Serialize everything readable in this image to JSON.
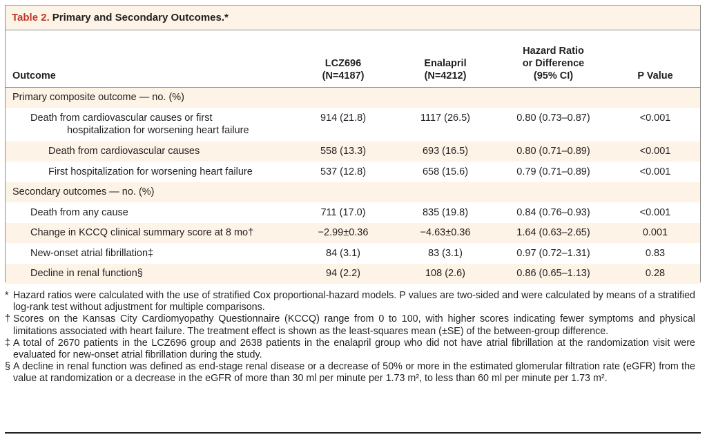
{
  "table": {
    "number": "Table 2.",
    "title": "Primary and Secondary Outcomes.*",
    "columns": {
      "outcome": "Outcome",
      "lcz": {
        "line1": "LCZ696",
        "line2": "(N=4187)"
      },
      "ena": {
        "line1": "Enalapril",
        "line2": "(N=4212)"
      },
      "hr": {
        "line1": "Hazard Ratio",
        "line2": "or Difference",
        "line3": "(95% CI)"
      },
      "p": "P Value"
    },
    "rows": [
      {
        "label": "Primary composite outcome — no. (%)",
        "lcz": "",
        "ena": "",
        "hr": "",
        "p": ""
      },
      {
        "label": "Death from cardiovascular causes or first",
        "label2": "hospitalization for worsening heart failure",
        "lcz": "914 (21.8)",
        "ena": "1117 (26.5)",
        "hr": "0.80 (0.73–0.87)",
        "p": "<0.001"
      },
      {
        "label": "Death from cardiovascular causes",
        "lcz": "558 (13.3)",
        "ena": "693 (16.5)",
        "hr": "0.80 (0.71–0.89)",
        "p": "<0.001"
      },
      {
        "label": "First hospitalization for worsening heart failure",
        "lcz": "537 (12.8)",
        "ena": "658 (15.6)",
        "hr": "0.79 (0.71–0.89)",
        "p": "<0.001"
      },
      {
        "label": "Secondary outcomes — no. (%)",
        "lcz": "",
        "ena": "",
        "hr": "",
        "p": ""
      },
      {
        "label": "Death from any cause",
        "lcz": "711 (17.0)",
        "ena": "835 (19.8)",
        "hr": "0.84 (0.76–0.93)",
        "p": "<0.001"
      },
      {
        "label": "Change in KCCQ clinical summary score at 8 mo†",
        "lcz": "−2.99±0.36",
        "ena": "−4.63±0.36",
        "hr": "1.64 (0.63–2.65)",
        "p": "0.001"
      },
      {
        "label": "New-onset atrial fibrillation‡",
        "lcz": "84 (3.1)",
        "ena": "83 (3.1)",
        "hr": "0.97 (0.72–1.31)",
        "p": "0.83"
      },
      {
        "label": "Decline in renal function§",
        "lcz": "94 (2.2)",
        "ena": "108 (2.6)",
        "hr": "0.86 (0.65–1.13)",
        "p": "0.28"
      }
    ]
  },
  "footnotes": [
    {
      "symbol": "*",
      "text": "Hazard ratios were calculated with the use of stratified Cox proportional-hazard models. P values are two-sided and were calculated by means of a stratified log-rank test without adjustment for multiple comparisons."
    },
    {
      "symbol": "†",
      "text": "Scores on the Kansas City Cardiomyopathy Questionnaire (KCCQ) range from 0 to 100, with higher scores indicating fewer symptoms and physical limitations associated with heart failure. The treatment effect is shown as the least-squares mean (±SE) of the between-group difference."
    },
    {
      "symbol": "‡",
      "text": "A total of 2670 patients in the LCZ696 group and 2638 patients in the enalapril group who did not have atrial fibrillation at the randomization visit were evaluated for new-onset atrial fibrillation during the study."
    },
    {
      "symbol": "§",
      "text": "A decline in renal function was defined as end-stage renal disease or a decrease of 50% or more in the estimated glomerular filtration rate (eGFR) from the value at randomization or a decrease in the eGFR of more than 30 ml per minute per 1.73 m², to less than 60 ml per minute per 1.73 m²."
    }
  ]
}
